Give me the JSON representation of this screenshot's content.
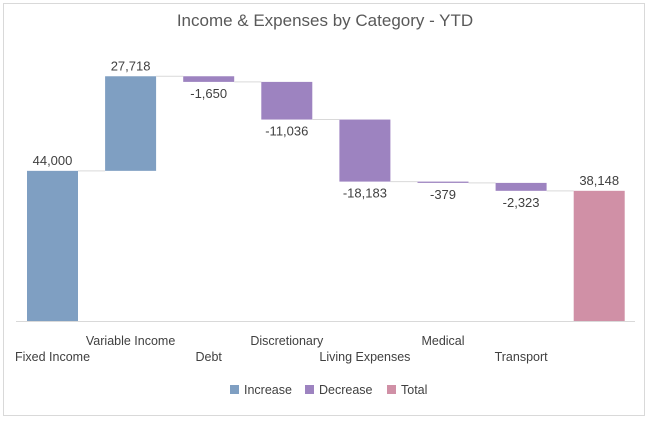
{
  "chart_data": {
    "type": "waterfall",
    "title": "Income & Expenses by Category - YTD",
    "categories": [
      "Fixed Income",
      "Variable Income",
      "Debt",
      "Discretionary",
      "Living Expenses",
      "Medical",
      "Transport",
      ""
    ],
    "values": [
      44000,
      27718,
      -1650,
      -11036,
      -18183,
      -379,
      -2323,
      38148
    ],
    "labels": [
      "44,000",
      "27,718",
      "-1,650",
      "-11,036",
      "-18,183",
      "-379",
      "-2,323",
      "38,148"
    ],
    "kinds": [
      "increase",
      "increase",
      "decrease",
      "decrease",
      "decrease",
      "decrease",
      "decrease",
      "total"
    ],
    "ylim": [
      0,
      80000
    ],
    "grid": false,
    "legend_position": "bottom",
    "legend": [
      {
        "key": "increase",
        "label": "Increase",
        "color": "#7f9fc2"
      },
      {
        "key": "decrease",
        "label": "Decrease",
        "color": "#9d83c0"
      },
      {
        "key": "total",
        "label": "Total",
        "color": "#d090a6"
      }
    ]
  }
}
